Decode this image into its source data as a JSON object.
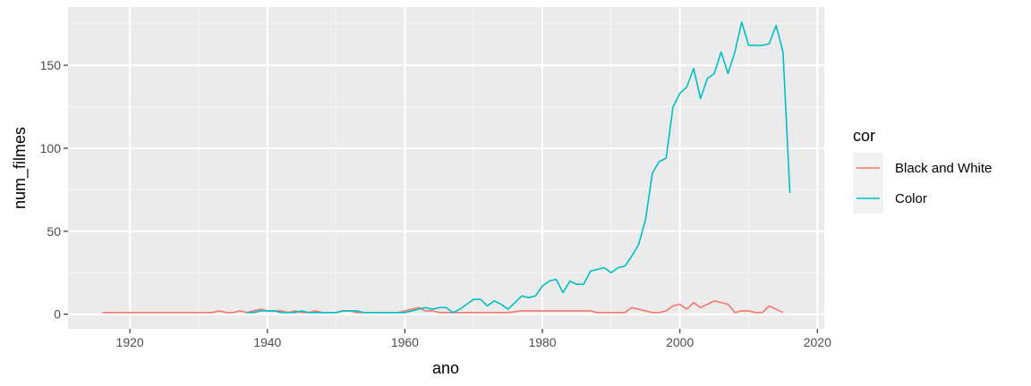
{
  "chart_data": {
    "type": "line",
    "title": "",
    "xlabel": "ano",
    "ylabel": "num_filmes",
    "xlim": [
      1911,
      2021
    ],
    "ylim": [
      -8.8,
      185
    ],
    "x_ticks": [
      1920,
      1940,
      1960,
      1980,
      2000,
      2020
    ],
    "y_ticks": [
      0,
      50,
      100,
      150
    ],
    "grid": true,
    "legend": {
      "title": "cor",
      "position": "right"
    },
    "series": [
      {
        "name": "Black and White",
        "color": "#F8766D",
        "points": [
          [
            1916,
            1
          ],
          [
            1920,
            1
          ],
          [
            1925,
            1
          ],
          [
            1930,
            1
          ],
          [
            1932,
            1
          ],
          [
            1933,
            2
          ],
          [
            1934,
            1
          ],
          [
            1935,
            1
          ],
          [
            1936,
            2
          ],
          [
            1937,
            1
          ],
          [
            1938,
            2
          ],
          [
            1939,
            3
          ],
          [
            1940,
            2
          ],
          [
            1941,
            2
          ],
          [
            1942,
            2
          ],
          [
            1943,
            1
          ],
          [
            1944,
            2
          ],
          [
            1945,
            1
          ],
          [
            1946,
            1
          ],
          [
            1947,
            2
          ],
          [
            1948,
            1
          ],
          [
            1949,
            1
          ],
          [
            1950,
            1
          ],
          [
            1951,
            2
          ],
          [
            1952,
            2
          ],
          [
            1953,
            1
          ],
          [
            1954,
            1
          ],
          [
            1955,
            1
          ],
          [
            1956,
            1
          ],
          [
            1957,
            1
          ],
          [
            1958,
            1
          ],
          [
            1959,
            1
          ],
          [
            1960,
            2
          ],
          [
            1961,
            3
          ],
          [
            1962,
            4
          ],
          [
            1963,
            2
          ],
          [
            1964,
            2
          ],
          [
            1965,
            1
          ],
          [
            1966,
            1
          ],
          [
            1967,
            1
          ],
          [
            1968,
            1
          ],
          [
            1970,
            1
          ],
          [
            1975,
            1
          ],
          [
            1977,
            2
          ],
          [
            1978,
            2
          ],
          [
            1980,
            2
          ],
          [
            1985,
            2
          ],
          [
            1987,
            2
          ],
          [
            1988,
            1
          ],
          [
            1990,
            1
          ],
          [
            1992,
            1
          ],
          [
            1993,
            4
          ],
          [
            1994,
            3
          ],
          [
            1995,
            2
          ],
          [
            1996,
            1
          ],
          [
            1997,
            1
          ],
          [
            1998,
            2
          ],
          [
            1999,
            5
          ],
          [
            2000,
            6
          ],
          [
            2001,
            3
          ],
          [
            2002,
            7
          ],
          [
            2003,
            4
          ],
          [
            2004,
            6
          ],
          [
            2005,
            8
          ],
          [
            2006,
            7
          ],
          [
            2007,
            6
          ],
          [
            2008,
            1
          ],
          [
            2009,
            2
          ],
          [
            2010,
            2
          ],
          [
            2011,
            1
          ],
          [
            2012,
            1
          ],
          [
            2013,
            5
          ],
          [
            2014,
            3
          ],
          [
            2015,
            1
          ]
        ]
      },
      {
        "name": "Color",
        "color": "#00BFC4",
        "points": [
          [
            1937,
            1
          ],
          [
            1938,
            1
          ],
          [
            1939,
            2
          ],
          [
            1940,
            2
          ],
          [
            1941,
            2
          ],
          [
            1942,
            1
          ],
          [
            1943,
            1
          ],
          [
            1944,
            1
          ],
          [
            1945,
            2
          ],
          [
            1946,
            1
          ],
          [
            1947,
            1
          ],
          [
            1948,
            1
          ],
          [
            1949,
            1
          ],
          [
            1950,
            1
          ],
          [
            1951,
            2
          ],
          [
            1952,
            2
          ],
          [
            1953,
            2
          ],
          [
            1954,
            1
          ],
          [
            1955,
            1
          ],
          [
            1956,
            1
          ],
          [
            1957,
            1
          ],
          [
            1958,
            1
          ],
          [
            1959,
            1
          ],
          [
            1960,
            1
          ],
          [
            1961,
            2
          ],
          [
            1962,
            3
          ],
          [
            1963,
            4
          ],
          [
            1964,
            3
          ],
          [
            1965,
            4
          ],
          [
            1966,
            4
          ],
          [
            1967,
            1
          ],
          [
            1968,
            3
          ],
          [
            1969,
            6
          ],
          [
            1970,
            9
          ],
          [
            1971,
            9
          ],
          [
            1972,
            5
          ],
          [
            1973,
            8
          ],
          [
            1974,
            6
          ],
          [
            1975,
            3
          ],
          [
            1976,
            7
          ],
          [
            1977,
            11
          ],
          [
            1978,
            10
          ],
          [
            1979,
            11
          ],
          [
            1980,
            17
          ],
          [
            1981,
            20
          ],
          [
            1982,
            21
          ],
          [
            1983,
            13
          ],
          [
            1984,
            20
          ],
          [
            1985,
            18
          ],
          [
            1986,
            18
          ],
          [
            1987,
            26
          ],
          [
            1988,
            27
          ],
          [
            1989,
            28
          ],
          [
            1990,
            25
          ],
          [
            1991,
            28
          ],
          [
            1992,
            29
          ],
          [
            1993,
            35
          ],
          [
            1994,
            42
          ],
          [
            1995,
            57
          ],
          [
            1996,
            85
          ],
          [
            1997,
            92
          ],
          [
            1998,
            94
          ],
          [
            1999,
            125
          ],
          [
            2000,
            133
          ],
          [
            2001,
            137
          ],
          [
            2002,
            148
          ],
          [
            2003,
            130
          ],
          [
            2004,
            142
          ],
          [
            2005,
            145
          ],
          [
            2006,
            158
          ],
          [
            2007,
            145
          ],
          [
            2008,
            158
          ],
          [
            2009,
            176
          ],
          [
            2010,
            162
          ],
          [
            2011,
            162
          ],
          [
            2012,
            162
          ],
          [
            2013,
            163
          ],
          [
            2014,
            174
          ],
          [
            2015,
            158
          ],
          [
            2016,
            73
          ]
        ]
      }
    ]
  }
}
